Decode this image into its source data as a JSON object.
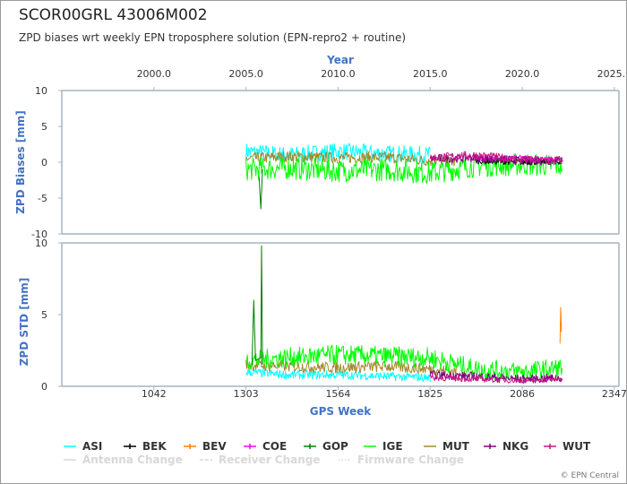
{
  "header": {
    "title": "SCOR00GRL 43006M002",
    "subtitle": "ZPD biases wrt weekly EPN troposphere solution (EPN-repro2 + routine)"
  },
  "credit": "© EPN Central",
  "colors": {
    "ASI": "#00ffff",
    "BEK": "#000000",
    "BEV": "#ff7f00",
    "COE": "#ff00ff",
    "GOP": "#008000",
    "IGE": "#00ff00",
    "MUT": "#a0892c",
    "NKG": "#800080",
    "WUT": "#c71585",
    "axis": "#a6b4c0",
    "title_blue": "#4472C4"
  },
  "chart_data": [
    {
      "id": "bias",
      "type": "line",
      "xlabel": "GPS Week",
      "ylabel": "ZPD Biases [mm]",
      "top_axis_label": "Year",
      "ylim": [
        -10,
        10
      ],
      "yticks": [
        "10",
        "5",
        "0",
        "-5",
        "-10"
      ],
      "xlim": [
        781,
        2360
      ],
      "top_xticks": [
        "2000.0",
        "2005.0",
        "2010.0",
        "2015.0",
        "2020.0",
        "2025.0"
      ],
      "top_xtick_weeks": [
        1042,
        1303,
        1564,
        1825,
        2086,
        2347
      ],
      "series": [
        {
          "name": "ASI",
          "x": [
            1303,
            1420,
            1564,
            1700,
            1825
          ],
          "y": [
            1.5,
            1.0,
            1.5,
            1.2,
            1.0
          ],
          "noise": 1.2
        },
        {
          "name": "MUT",
          "x": [
            1303,
            1420,
            1564,
            1700,
            1825,
            1900
          ],
          "y": [
            0.5,
            0.8,
            0.6,
            0.7,
            0.2,
            0.0
          ],
          "noise": 0.8
        },
        {
          "name": "IGE",
          "x": [
            1303,
            1420,
            1564,
            1700,
            1825,
            1950,
            2086,
            2200
          ],
          "y": [
            -1.0,
            -0.8,
            -1.2,
            -1.0,
            -1.5,
            -0.5,
            -0.3,
            -0.5
          ],
          "noise": 1.6
        },
        {
          "name": "GOP",
          "x": [
            1340,
            1345,
            1350
          ],
          "y": [
            -2.0,
            -6.5,
            -1.0
          ],
          "noise": 0.0
        },
        {
          "name": "BEK",
          "x": [
            1950,
            2086,
            2200
          ],
          "y": [
            0.2,
            0.0,
            0.1
          ],
          "noise": 0.4
        },
        {
          "name": "COE",
          "x": [
            1950,
            2086,
            2200
          ],
          "y": [
            0.5,
            0.6,
            0.3
          ],
          "noise": 0.4
        },
        {
          "name": "NKG",
          "x": [
            1825,
            1950,
            2086,
            2200
          ],
          "y": [
            0.5,
            0.6,
            0.2,
            0.2
          ],
          "noise": 0.6
        },
        {
          "name": "WUT",
          "x": [
            1825,
            1950,
            2086,
            2200
          ],
          "y": [
            0.6,
            1.0,
            0.3,
            0.3
          ],
          "noise": 0.6
        }
      ]
    },
    {
      "id": "std",
      "type": "line",
      "xlabel": "GPS Week",
      "ylabel": "ZPD STD [mm]",
      "ylim": [
        0,
        10
      ],
      "yticks": [
        "10",
        "5",
        "0"
      ],
      "xlim": [
        781,
        2360
      ],
      "bottom_xticks": [
        "1042",
        "1303",
        "1564",
        "1825",
        "2086",
        "2347"
      ],
      "bottom_xtick_weeks": [
        1042,
        1303,
        1564,
        1825,
        2086,
        2347
      ],
      "series": [
        {
          "name": "ASI",
          "x": [
            1303,
            1420,
            1564,
            1700,
            1825
          ],
          "y": [
            1.0,
            0.8,
            0.8,
            0.7,
            0.6
          ],
          "noise": 0.3
        },
        {
          "name": "MUT",
          "x": [
            1303,
            1420,
            1564,
            1700,
            1825,
            1900
          ],
          "y": [
            1.5,
            1.4,
            1.3,
            1.4,
            1.2,
            1.0
          ],
          "noise": 0.4
        },
        {
          "name": "IGE",
          "x": [
            1303,
            1420,
            1564,
            1700,
            1825,
            1950,
            2086,
            2200
          ],
          "y": [
            1.8,
            2.0,
            2.2,
            2.1,
            2.0,
            1.2,
            1.0,
            1.3
          ],
          "noise": 0.7
        },
        {
          "name": "GOP",
          "x": [
            1320,
            1325,
            1330,
            1345,
            1347,
            1350
          ],
          "y": [
            1.5,
            6.0,
            1.8,
            2.0,
            9.8,
            1.5
          ],
          "noise": 0.0
        },
        {
          "name": "BEV",
          "x": [
            2193,
            2195,
            2197
          ],
          "y": [
            3.0,
            5.5,
            3.8
          ],
          "noise": 0.0
        },
        {
          "name": "NKG",
          "x": [
            1825,
            1950,
            2086,
            2200
          ],
          "y": [
            0.8,
            0.7,
            0.5,
            0.6
          ],
          "noise": 0.3
        },
        {
          "name": "WUT",
          "x": [
            1825,
            1950,
            2086,
            2200
          ],
          "y": [
            0.6,
            0.5,
            0.4,
            0.5
          ],
          "noise": 0.2
        }
      ]
    }
  ],
  "legend": {
    "items": [
      {
        "name": "ASI",
        "color": "#00ffff",
        "style": "plain"
      },
      {
        "name": "BEK",
        "color": "#000000",
        "style": "ticked"
      },
      {
        "name": "BEV",
        "color": "#ff7f00",
        "style": "ticked"
      },
      {
        "name": "COE",
        "color": "#ff00ff",
        "style": "ticked"
      },
      {
        "name": "GOP",
        "color": "#008000",
        "style": "ticked"
      },
      {
        "name": "IGE",
        "color": "#00ff00",
        "style": "plain"
      },
      {
        "name": "MUT",
        "color": "#a0892c",
        "style": "plain"
      },
      {
        "name": "NKG",
        "color": "#800080",
        "style": "ticked"
      },
      {
        "name": "WUT",
        "color": "#c71585",
        "style": "ticked"
      }
    ],
    "events": [
      {
        "name": "Antenna Change",
        "style": "solid"
      },
      {
        "name": "Receiver Change",
        "style": "dashed"
      },
      {
        "name": "Firmware Change",
        "style": "dotted"
      }
    ]
  }
}
